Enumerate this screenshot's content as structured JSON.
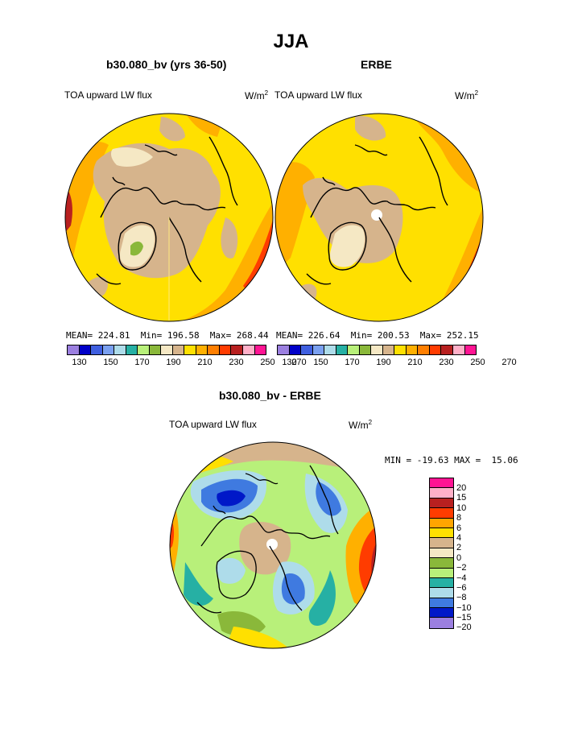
{
  "title": "JJA",
  "panels": [
    {
      "title": "b30.080_bv (yrs 36-50)",
      "variable": "TOA upward LW flux",
      "units_base": "W/m",
      "units_exp": "2",
      "stats_text": "MEAN= 224.81  Min= 196.58  Max= 268.44"
    },
    {
      "title": "ERBE",
      "variable": "TOA upward LW flux",
      "units_base": "W/m",
      "units_exp": "2",
      "stats_text": "MEAN= 226.64  Min= 200.53  Max= 252.15"
    },
    {
      "title": "b30.080_bv - ERBE",
      "variable": "TOA upward LW flux",
      "units_base": "W/m",
      "units_exp": "2",
      "stats_text": "MIN = -19.63 MAX =  15.06"
    }
  ],
  "colorbar_top": {
    "colors": [
      "#9b7fe0",
      "#0000c8",
      "#3f5fe0",
      "#7aa0f0",
      "#aedcea",
      "#26b0a4",
      "#b8f07a",
      "#8ab83a",
      "#f5e8c4",
      "#d6b48c",
      "#ffe000",
      "#ffb000",
      "#ff7f00",
      "#ff3c00",
      "#b82020",
      "#ffb0c8",
      "#ff1493"
    ],
    "labels": [
      "130",
      "150",
      "170",
      "190",
      "210",
      "230",
      "250",
      "270"
    ]
  },
  "colorbar_diff": {
    "colors": [
      "#ff1493",
      "#ffb0c8",
      "#b82020",
      "#ff3c00",
      "#ffa500",
      "#ffe000",
      "#d6b48c",
      "#f5e8c4",
      "#8ab83a",
      "#b8f07a",
      "#26b0a4",
      "#aedcea",
      "#3f7ae0",
      "#0018c8",
      "#9b7fe0"
    ],
    "labels": [
      "20",
      "15",
      "10",
      "8",
      "6",
      "4",
      "2",
      "0",
      "−2",
      "−4",
      "−6",
      "−8",
      "−10",
      "−15",
      "−20"
    ]
  },
  "map_colors": {
    "yellow": "#ffe000",
    "tan": "#d6b48c",
    "cream": "#f5e8c4",
    "orange": "#ffb000",
    "darkorange": "#ff7f00",
    "red": "#ff3c00",
    "darkred": "#b82020",
    "pink": "#ffb0c8",
    "green": "#8ab83a",
    "lightgreen": "#b8f07a",
    "teal": "#26b0a4",
    "lightblue": "#aedcea",
    "blue": "#3f7ae0",
    "darkblue": "#0018c8"
  }
}
